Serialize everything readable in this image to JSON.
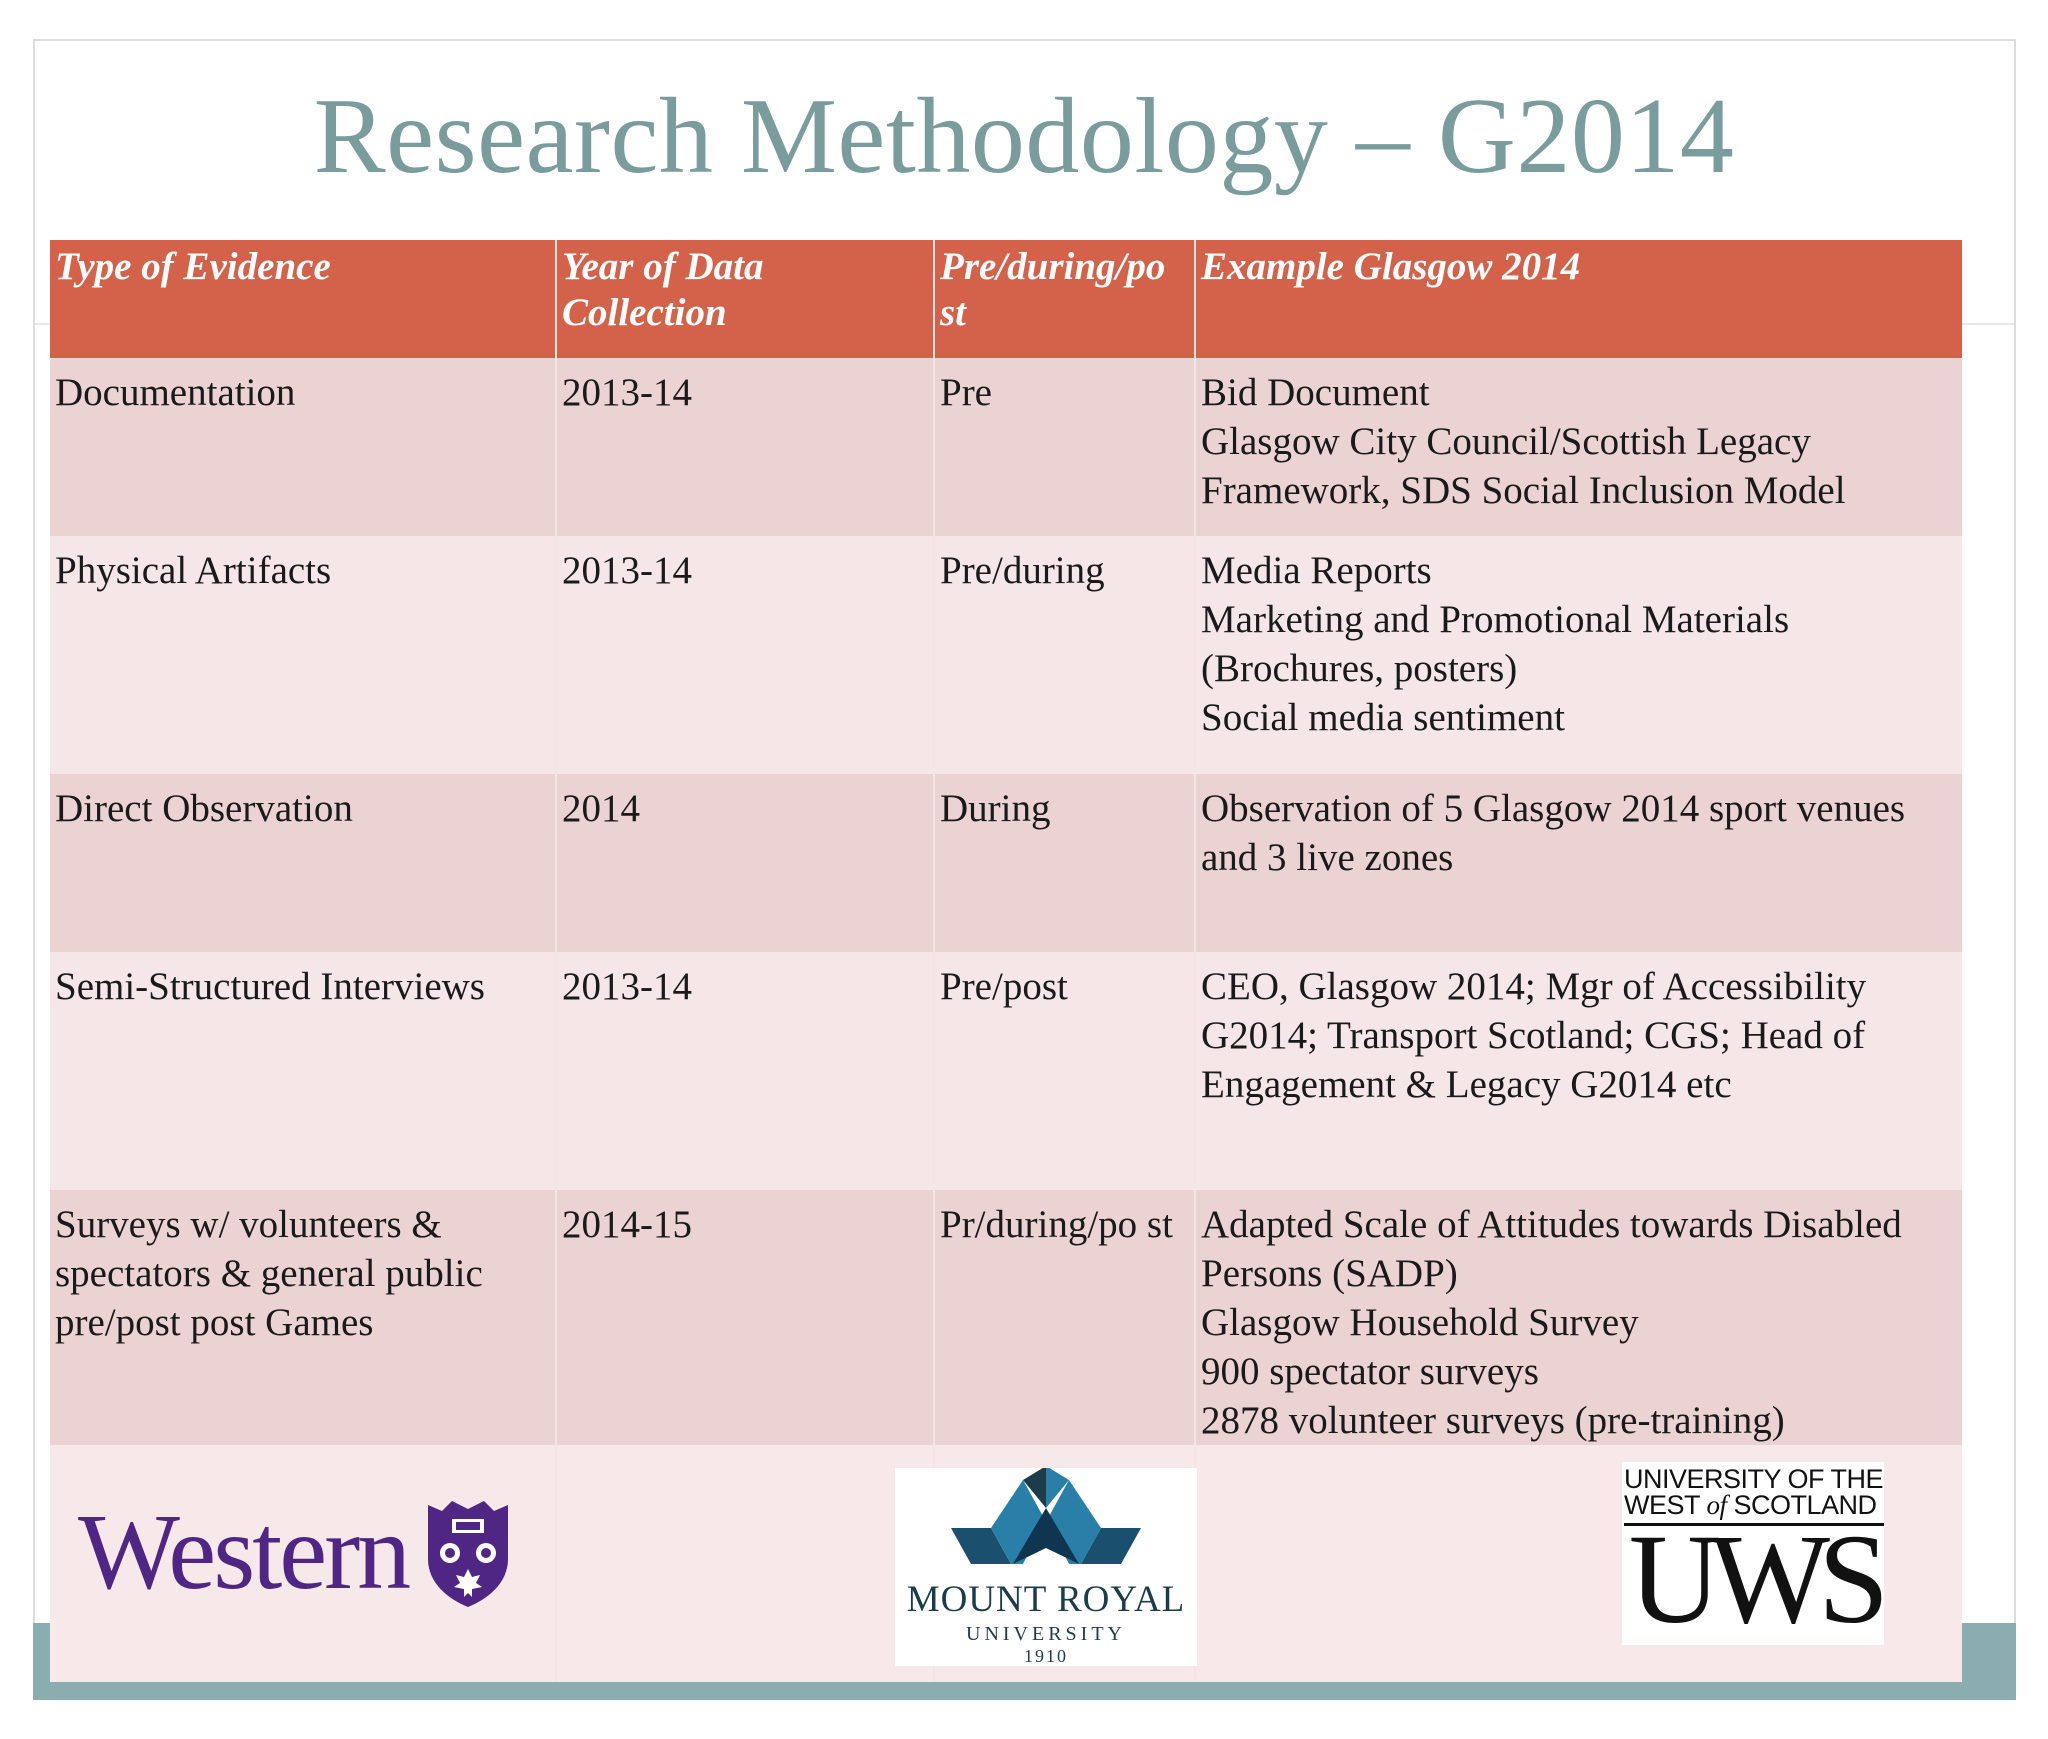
{
  "slide": {
    "title": "Research Methodology – G2014"
  },
  "table": {
    "headers": [
      "Type of Evidence",
      "Year of Data Collection",
      "Pre/during/po st",
      "Example Glasgow 2014"
    ],
    "rows": [
      {
        "type": "Documentation",
        "year": "2013-14",
        "phase": "Pre",
        "example": "Bid Document\nGlasgow City Council/Scottish Legacy Framework, SDS Social Inclusion Model"
      },
      {
        "type": "Physical Artifacts",
        "year": "2013-14",
        "phase": "Pre/during",
        "example": "Media Reports\nMarketing and Promotional Materials (Brochures, posters)\nSocial media sentiment"
      },
      {
        "type": "Direct Observation",
        "year": "2014",
        "phase": "During",
        "example": "Observation of 5 Glasgow 2014 sport venues and 3 live zones"
      },
      {
        "type": "Semi-Structured Interviews",
        "year": "2013-14",
        "phase": "Pre/post",
        "example": "CEO, Glasgow 2014; Mgr of Accessibility G2014; Transport Scotland; CGS; Head of Engagement & Legacy G2014 etc"
      },
      {
        "type": "Surveys w/ volunteers & spectators & general public pre/post post Games",
        "year": "2014-15",
        "phase": "Pr/during/po st",
        "example": "Adapted Scale of Attitudes towards Disabled Persons (SADP)\nGlasgow Household Survey\n900 spectator surveys\n2878 volunteer surveys (pre-training)"
      }
    ]
  },
  "logos": {
    "western": {
      "name": "Western",
      "color": "#4f2683"
    },
    "mount_royal": {
      "name": "MOUNT ROYAL",
      "sub": "UNIVERSITY",
      "year": "1910"
    },
    "uws": {
      "line1": "UNIVERSITY OF THE",
      "line2_a": "WEST ",
      "line2_of": "of",
      "line2_b": " SCOTLAND",
      "abbr": "UWS"
    }
  },
  "colors": {
    "header_bg": "#d4624a",
    "row_dark": "#ecd3d3",
    "row_light": "#f5e7e8",
    "title": "#7a9c9c",
    "accent_bar": "#8aaeb0"
  }
}
